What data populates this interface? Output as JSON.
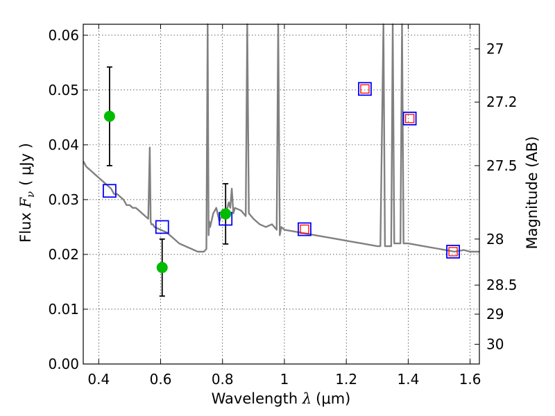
{
  "chart_data": {
    "type": "scatter",
    "xlabel_prefix": "Wavelength ",
    "xlabel_symbol": "λ",
    "xlabel_unit": "(μm)",
    "ylabel_prefix": "Flux ",
    "ylabel_symbol": "F",
    "ylabel_subscript": "ν",
    "ylabel_unit": "( μJy )",
    "y2label": "Magnitude (AB)",
    "xlim": [
      0.35,
      1.63
    ],
    "ylim": [
      0.0,
      0.062
    ],
    "xticks": [
      "0.4",
      "0.6",
      "0.8",
      "1",
      "1.2",
      "1.4",
      "1.6"
    ],
    "xtick_values": [
      0.4,
      0.6,
      0.8,
      1.0,
      1.2,
      1.4,
      1.6
    ],
    "yticks": [
      "0.00",
      "0.01",
      "0.02",
      "0.03",
      "0.04",
      "0.05",
      "0.06"
    ],
    "ytick_values": [
      0.0,
      0.01,
      0.02,
      0.03,
      0.04,
      0.05,
      0.06
    ],
    "y2ticks": [
      "27",
      "27.2",
      "27.5",
      "28",
      "28.5",
      "29",
      "30"
    ],
    "y2tick_flux": [
      0.0575,
      0.0478,
      0.0362,
      0.0228,
      0.0144,
      0.0091,
      0.0036
    ],
    "grid": true,
    "colors": {
      "model": "#808080",
      "observed": "#00bb00",
      "model_photometry_box": "#0000ff",
      "upper_limit_box": "#ff0000",
      "error_bar": "#000000"
    },
    "series": [
      {
        "kind": "model_spectrum",
        "x": [
          0.35,
          0.36,
          0.37,
          0.38,
          0.39,
          0.4,
          0.41,
          0.42,
          0.43,
          0.44,
          0.45,
          0.46,
          0.47,
          0.48,
          0.49,
          0.5,
          0.51,
          0.52,
          0.53,
          0.54,
          0.55,
          0.56,
          0.565,
          0.568,
          0.57,
          0.575,
          0.58,
          0.6,
          0.62,
          0.64,
          0.66,
          0.68,
          0.7,
          0.72,
          0.74,
          0.748,
          0.752,
          0.755,
          0.757,
          0.76,
          0.77,
          0.78,
          0.79,
          0.8,
          0.81,
          0.82,
          0.825,
          0.83,
          0.835,
          0.84,
          0.86,
          0.875,
          0.88,
          0.885,
          0.9,
          0.92,
          0.94,
          0.96,
          0.975,
          0.98,
          0.985,
          0.99,
          1.0,
          1.05,
          1.1,
          1.15,
          1.2,
          1.25,
          1.3,
          1.31,
          1.32,
          1.325,
          1.33,
          1.345,
          1.35,
          1.355,
          1.36,
          1.375,
          1.38,
          1.385,
          1.4,
          1.45,
          1.5,
          1.55,
          1.58,
          1.6,
          1.63
        ],
        "y": [
          0.037,
          0.036,
          0.0355,
          0.035,
          0.0345,
          0.034,
          0.0335,
          0.033,
          0.0325,
          0.032,
          0.031,
          0.031,
          0.0305,
          0.03,
          0.029,
          0.029,
          0.0285,
          0.0285,
          0.028,
          0.0275,
          0.027,
          0.0265,
          0.0395,
          0.026,
          0.0255,
          0.0255,
          0.025,
          0.0245,
          0.024,
          0.023,
          0.022,
          0.0215,
          0.021,
          0.0205,
          0.0205,
          0.021,
          0.062,
          0.0235,
          0.026,
          0.025,
          0.0275,
          0.0285,
          0.026,
          0.0275,
          0.027,
          0.0295,
          0.0285,
          0.032,
          0.0275,
          0.0285,
          0.028,
          0.027,
          0.062,
          0.0275,
          0.0265,
          0.0255,
          0.025,
          0.0255,
          0.0245,
          0.062,
          0.0235,
          0.025,
          0.0245,
          0.024,
          0.0235,
          0.023,
          0.0225,
          0.022,
          0.0215,
          0.0215,
          0.062,
          0.0215,
          0.0215,
          0.0215,
          0.062,
          0.022,
          0.022,
          0.022,
          0.062,
          0.022,
          0.022,
          0.0215,
          0.021,
          0.0205,
          0.0208,
          0.0205,
          0.0205
        ]
      },
      {
        "kind": "observed",
        "x": [
          0.435,
          0.605,
          0.81
        ],
        "y": [
          0.0452,
          0.0176,
          0.0274
        ],
        "yerr_low": [
          0.0362,
          0.0124,
          0.0219
        ],
        "yerr_high": [
          0.0542,
          0.0228,
          0.0329
        ]
      },
      {
        "kind": "model_photometry",
        "x": [
          0.435,
          0.605,
          0.81,
          1.065,
          1.26,
          1.405,
          1.545
        ],
        "y": [
          0.0316,
          0.025,
          0.0265,
          0.0246,
          0.0502,
          0.0448,
          0.0205
        ]
      },
      {
        "kind": "upper_limits",
        "x": [
          1.065,
          1.26,
          1.405,
          1.545
        ],
        "y": [
          0.0246,
          0.0502,
          0.0448,
          0.0205
        ]
      }
    ]
  }
}
